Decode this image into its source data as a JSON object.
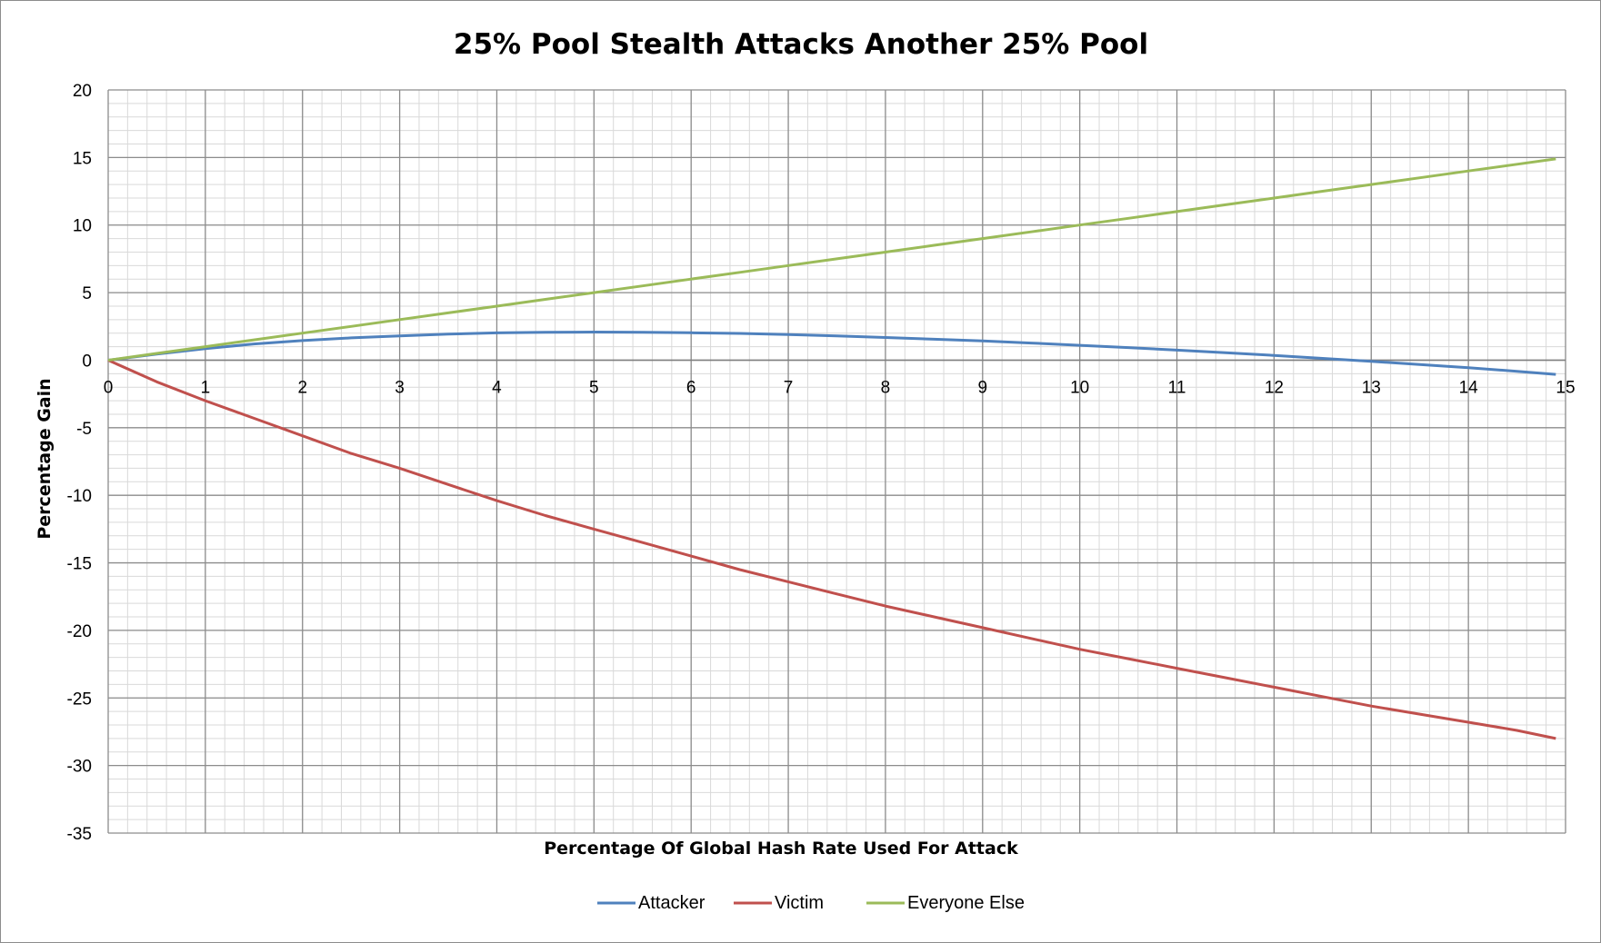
{
  "chart_data": {
    "type": "line",
    "title": "25% Pool Stealth Attacks Another 25% Pool",
    "xlabel": "Percentage Of Global Hash Rate Used For Attack",
    "ylabel": "Percentage Gain",
    "xlim": [
      0,
      15
    ],
    "ylim": [
      -35,
      20
    ],
    "x_ticks": [
      "0",
      "1",
      "2",
      "3",
      "4",
      "5",
      "6",
      "7",
      "8",
      "9",
      "10",
      "11",
      "12",
      "13",
      "14",
      "15"
    ],
    "y_ticks": [
      "20",
      "15",
      "10",
      "5",
      "0",
      "-5",
      "-10",
      "-15",
      "-20",
      "-25",
      "-30",
      "-35"
    ],
    "grid": true,
    "legend_position": "bottom",
    "x": [
      0,
      0.5,
      1,
      1.5,
      2,
      2.5,
      3,
      3.5,
      4,
      4.5,
      5,
      5.5,
      6,
      6.5,
      7,
      7.5,
      8,
      8.5,
      9,
      9.5,
      10,
      10.5,
      11,
      11.5,
      12,
      12.5,
      13,
      13.5,
      14,
      14.5,
      14.9
    ],
    "series": [
      {
        "name": "Attacker",
        "color": "#4f81bd",
        "values": [
          0,
          0.45,
          0.85,
          1.2,
          1.45,
          1.65,
          1.8,
          1.93,
          2.02,
          2.07,
          2.08,
          2.07,
          2.03,
          1.98,
          1.9,
          1.8,
          1.68,
          1.55,
          1.42,
          1.27,
          1.1,
          0.93,
          0.74,
          0.55,
          0.35,
          0.13,
          -0.09,
          -0.32,
          -0.56,
          -0.82,
          -1.05
        ]
      },
      {
        "name": "Victim",
        "color": "#c0504d",
        "values": [
          0,
          -1.6,
          -3.0,
          -4.3,
          -5.6,
          -6.9,
          -8.0,
          -9.2,
          -10.4,
          -11.5,
          -12.5,
          -13.5,
          -14.5,
          -15.5,
          -16.4,
          -17.3,
          -18.2,
          -19.0,
          -19.8,
          -20.6,
          -21.4,
          -22.1,
          -22.8,
          -23.5,
          -24.2,
          -24.9,
          -25.6,
          -26.2,
          -26.8,
          -27.4,
          -28.0
        ]
      },
      {
        "name": "Everyone Else",
        "color": "#9bbb59",
        "values": [
          0,
          0.5,
          1.0,
          1.5,
          2.0,
          2.5,
          3.0,
          3.5,
          4.0,
          4.5,
          5.0,
          5.5,
          6.0,
          6.5,
          7.0,
          7.5,
          8.0,
          8.5,
          9.0,
          9.5,
          10.0,
          10.5,
          11.0,
          11.5,
          12.0,
          12.5,
          13.0,
          13.5,
          14.0,
          14.5,
          14.9
        ]
      }
    ]
  }
}
